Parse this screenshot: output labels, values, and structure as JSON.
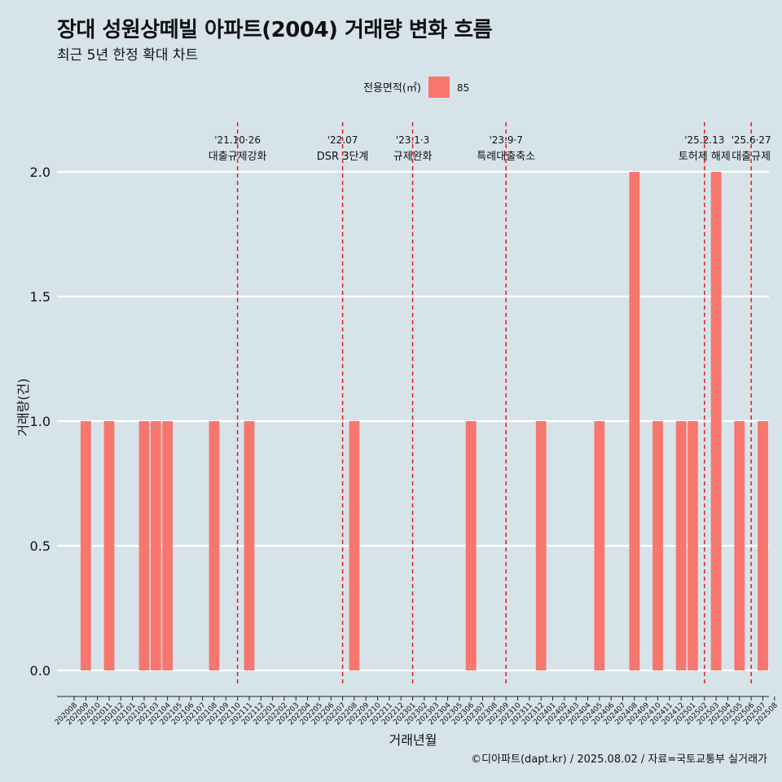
{
  "title": "장대 성원상떼빌 아파트(2004) 거래량 변화 흐름",
  "subtitle": "최근 5년 한정 확대 차트",
  "caption": "©디아파트(dapt.kr) / 2025.08.02 / 자료=국토교통부 실거래가",
  "colors": {
    "background": "#d6e4ea",
    "bar": "#f8766d",
    "event_line": "#e41a1c",
    "grid": "#ffffff"
  },
  "chart_data": {
    "type": "bar",
    "xlabel": "거래년월",
    "ylabel": "거래량(건)",
    "legend": {
      "title": "전용면적(㎡)",
      "position": "top"
    },
    "ylim": [
      0,
      2
    ],
    "yticks": [
      0.0,
      0.5,
      1.0,
      1.5,
      2.0
    ],
    "ytick_labels": [
      "0.0",
      "0.5",
      "1.0",
      "1.5",
      "2.0"
    ],
    "grid": true,
    "categories": [
      "202008",
      "202009",
      "202010",
      "202011",
      "202012",
      "202101",
      "202102",
      "202103",
      "202104",
      "202105",
      "202106",
      "202107",
      "202108",
      "202109",
      "202110",
      "202111",
      "202112",
      "202201",
      "202202",
      "202203",
      "202204",
      "202205",
      "202206",
      "202207",
      "202208",
      "202209",
      "202210",
      "202211",
      "202212",
      "202301",
      "202302",
      "202303",
      "202304",
      "202305",
      "202306",
      "202307",
      "202308",
      "202309",
      "202310",
      "202311",
      "202312",
      "202401",
      "202402",
      "202403",
      "202404",
      "202405",
      "202406",
      "202407",
      "202408",
      "202409",
      "202410",
      "202411",
      "202412",
      "202501",
      "202502",
      "202503",
      "202504",
      "202505",
      "202506",
      "202507",
      "202508"
    ],
    "series": [
      {
        "name": "85",
        "values": [
          0,
          1,
          0,
          1,
          0,
          0,
          1,
          1,
          1,
          0,
          0,
          0,
          1,
          0,
          0,
          1,
          0,
          0,
          0,
          0,
          0,
          0,
          0,
          0,
          1,
          0,
          0,
          0,
          0,
          0,
          0,
          0,
          0,
          0,
          1,
          0,
          0,
          0,
          0,
          0,
          1,
          0,
          0,
          0,
          0,
          1,
          0,
          0,
          2,
          0,
          1,
          0,
          1,
          1,
          0,
          2,
          0,
          1,
          0,
          1,
          0
        ]
      }
    ],
    "events": [
      {
        "x": "202110",
        "label1": "'21.10·26",
        "label2": "대출규제강화"
      },
      {
        "x": "202207",
        "label1": "'22.07",
        "label2": "DSR 3단계"
      },
      {
        "x": "202301",
        "label1": "'23.1·3",
        "label2": "규제완화"
      },
      {
        "x": "202309",
        "label1": "'23.9·7",
        "label2": "특례대출축소"
      },
      {
        "x": "202502",
        "label1": "'25.2.13",
        "label2": "토허제 해제"
      },
      {
        "x": "202506",
        "label1": "'25.6·27",
        "label2": "대출규제"
      }
    ]
  }
}
